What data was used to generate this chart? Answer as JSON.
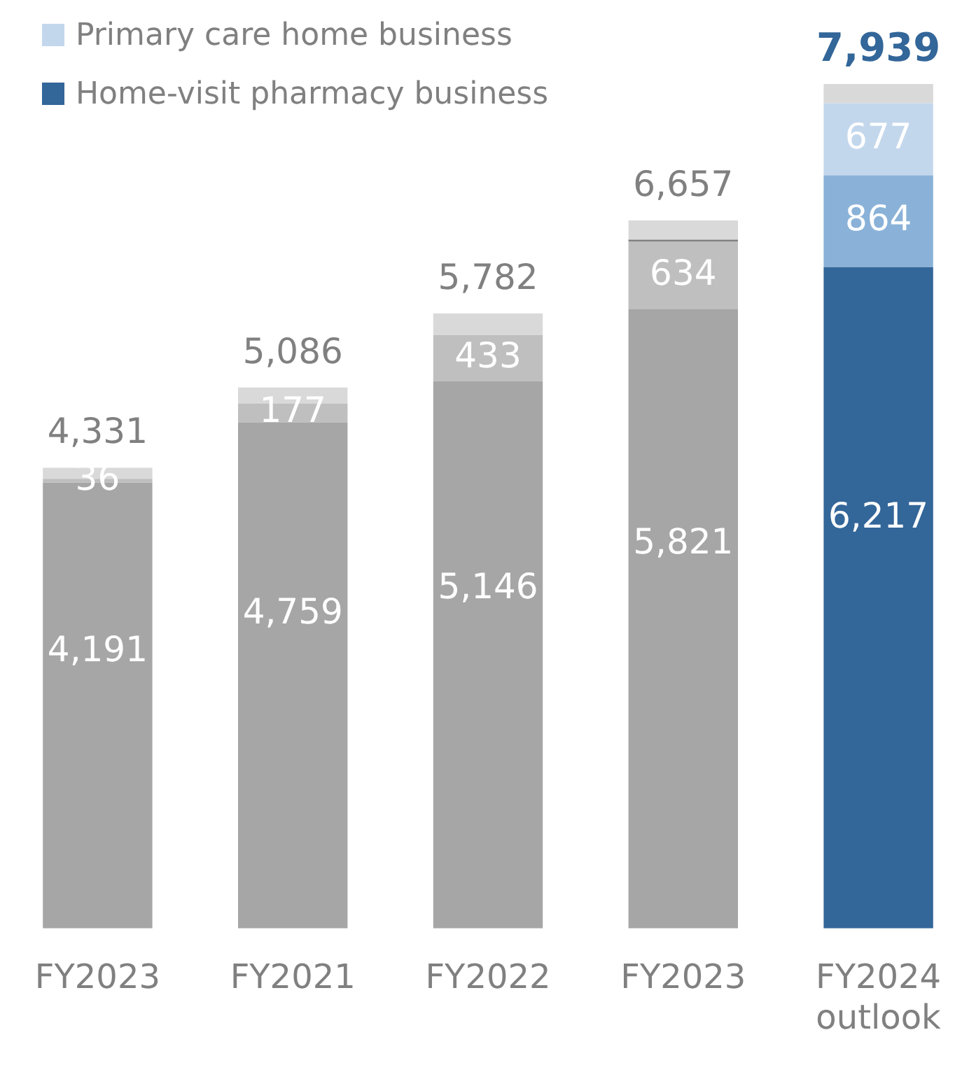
{
  "chart_data": {
    "type": "bar",
    "stacked": true,
    "legend": "top left",
    "categories": [
      "FY2023",
      "FY2021",
      "FY2022",
      "FY2023",
      "FY2024 outlook"
    ],
    "series": [
      {
        "name": "Home-visit pharmacy business",
        "color": "#336699",
        "colors": [
          "#a6a6a6",
          "#a6a6a6",
          "#a6a6a6",
          "#a6a6a6",
          "#336699"
        ],
        "values": [
          4191,
          4759,
          5146,
          5821,
          6217
        ],
        "value_labels": [
          "4,191",
          "4,759",
          "5,146",
          "5,821",
          "6,217"
        ]
      },
      {
        "colors": [
          "#bfbfbf",
          "#bfbfbf",
          "#bfbfbf",
          "#bfbfbf",
          "#8ab2d8"
        ],
        "values": [
          36,
          177,
          433,
          634,
          864
        ],
        "value_labels": [
          "36",
          "177",
          "433",
          "634",
          "864"
        ]
      },
      {
        "name": "Primary care home business",
        "color": "#c3d7ec",
        "colors": [
          "#808080",
          "#808080",
          "#808080",
          "#808080",
          "#c3d7ec"
        ],
        "values": [
          null,
          null,
          null,
          20,
          677
        ],
        "value_labels": [
          null,
          null,
          null,
          null,
          "677"
        ]
      },
      {
        "color": "#d9d9d9",
        "values": [
          104,
          150,
          203,
          182,
          181
        ]
      }
    ],
    "totals": [
      "4,331",
      "5,086",
      "5,782",
      "6,657",
      "7,939"
    ]
  }
}
